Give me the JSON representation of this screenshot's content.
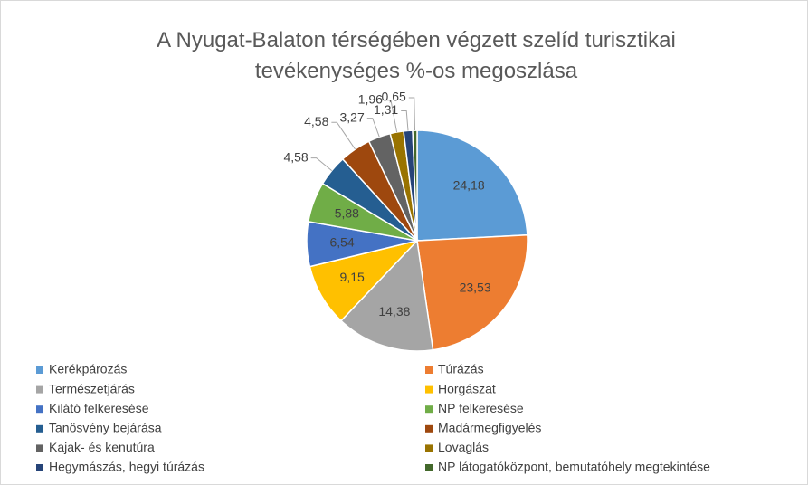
{
  "chart_data": {
    "type": "pie",
    "title": "A Nyugat-Balaton térségében végzett szelíd turisztikai tevékenységes %-os megoszlása",
    "categories": [
      "Kerékpározás",
      "Túrázás",
      "Természetjárás",
      "Horgászat",
      "Kilátó felkeresése",
      "NP felkeresése",
      "Tanösvény bejárása",
      "Madármegfigyelés",
      "Kajak- és kenutúra",
      "Lovaglás",
      "Hegymászás, hegyi túrázás",
      "NP látogatóközpont, bemutatóhely megtekintése"
    ],
    "values": [
      24.18,
      23.53,
      14.38,
      9.15,
      6.54,
      5.88,
      4.58,
      4.58,
      3.27,
      1.96,
      1.31,
      0.65
    ],
    "value_labels": [
      "24,18",
      "23,53",
      "14,38",
      "9,15",
      "6,54",
      "5,88",
      "4,58",
      "4,58",
      "3,27",
      "1,96",
      "1,31",
      "0,65"
    ],
    "colors": [
      "#5b9bd5",
      "#ed7d31",
      "#a5a5a5",
      "#ffc000",
      "#4472c4",
      "#70ad47",
      "#255e91",
      "#9e480e",
      "#636363",
      "#997300",
      "#264478",
      "#43682b"
    ],
    "legend": "bottom"
  }
}
